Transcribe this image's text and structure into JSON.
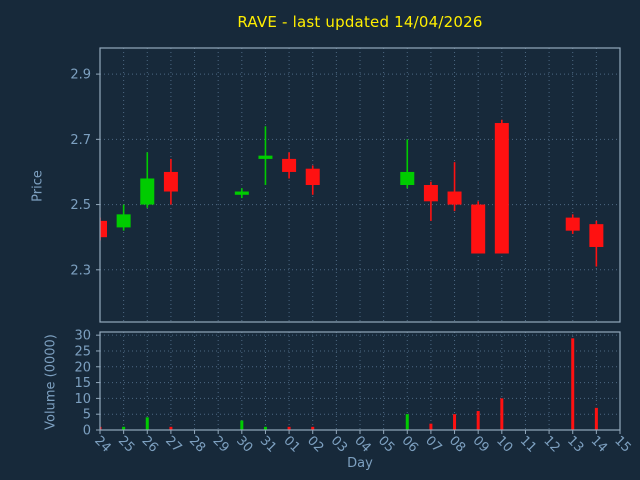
{
  "chart_data": {
    "type": "candlestick",
    "title": "RAVE - last updated 14/04/2026",
    "xlabel": "Day",
    "price_ylabel": "Price",
    "volume_ylabel": "Volume (0000)",
    "price_ticks": [
      2.3,
      2.5,
      2.7,
      2.9
    ],
    "price_ylim": [
      2.14,
      2.98
    ],
    "volume_ticks": [
      0,
      5,
      10,
      15,
      20,
      25,
      30
    ],
    "volume_ylim": [
      0,
      31
    ],
    "grid": "dotted",
    "legend_position": "none",
    "days": [
      "24",
      "25",
      "26",
      "27",
      "28",
      "29",
      "30",
      "31",
      "01",
      "02",
      "03",
      "04",
      "05",
      "06",
      "07",
      "08",
      "09",
      "10",
      "11",
      "12",
      "13",
      "14",
      "15"
    ],
    "candles": [
      {
        "day": "24",
        "open": 2.45,
        "high": 2.46,
        "low": 2.39,
        "close": 2.4,
        "volume": 1
      },
      {
        "day": "25",
        "open": 2.43,
        "high": 2.5,
        "low": 2.42,
        "close": 2.47,
        "volume": 1
      },
      {
        "day": "26",
        "open": 2.5,
        "high": 2.66,
        "low": 2.49,
        "close": 2.58,
        "volume": 4
      },
      {
        "day": "27",
        "open": 2.6,
        "high": 2.64,
        "low": 2.5,
        "close": 2.54,
        "volume": 1
      },
      {
        "day": "30",
        "open": 2.53,
        "high": 2.55,
        "low": 2.52,
        "close": 2.54,
        "volume": 3
      },
      {
        "day": "31",
        "open": 2.64,
        "high": 2.74,
        "low": 2.56,
        "close": 2.65,
        "volume": 1
      },
      {
        "day": "01",
        "open": 2.64,
        "high": 2.66,
        "low": 2.58,
        "close": 2.6,
        "volume": 1
      },
      {
        "day": "02",
        "open": 2.61,
        "high": 2.62,
        "low": 2.53,
        "close": 2.56,
        "volume": 1
      },
      {
        "day": "06",
        "open": 2.56,
        "high": 2.7,
        "low": 2.55,
        "close": 2.6,
        "volume": 5
      },
      {
        "day": "07",
        "open": 2.56,
        "high": 2.57,
        "low": 2.45,
        "close": 2.51,
        "volume": 2
      },
      {
        "day": "08",
        "open": 2.54,
        "high": 2.63,
        "low": 2.48,
        "close": 2.5,
        "volume": 5
      },
      {
        "day": "09",
        "open": 2.5,
        "high": 2.51,
        "low": 2.35,
        "close": 2.35,
        "volume": 6
      },
      {
        "day": "10",
        "open": 2.75,
        "high": 2.76,
        "low": 2.35,
        "close": 2.35,
        "volume": 10
      },
      {
        "day": "13",
        "open": 2.46,
        "high": 2.47,
        "low": 2.41,
        "close": 2.42,
        "volume": 29
      },
      {
        "day": "14",
        "open": 2.44,
        "high": 2.45,
        "low": 2.31,
        "close": 2.37,
        "volume": 7
      }
    ],
    "colors": {
      "background": "#17293a",
      "up": "#00cc00",
      "down": "#ff1111",
      "text": "#7da0c0",
      "title": "#ffee00",
      "grid": "#4d6983",
      "frame": "#93a9bc"
    }
  }
}
